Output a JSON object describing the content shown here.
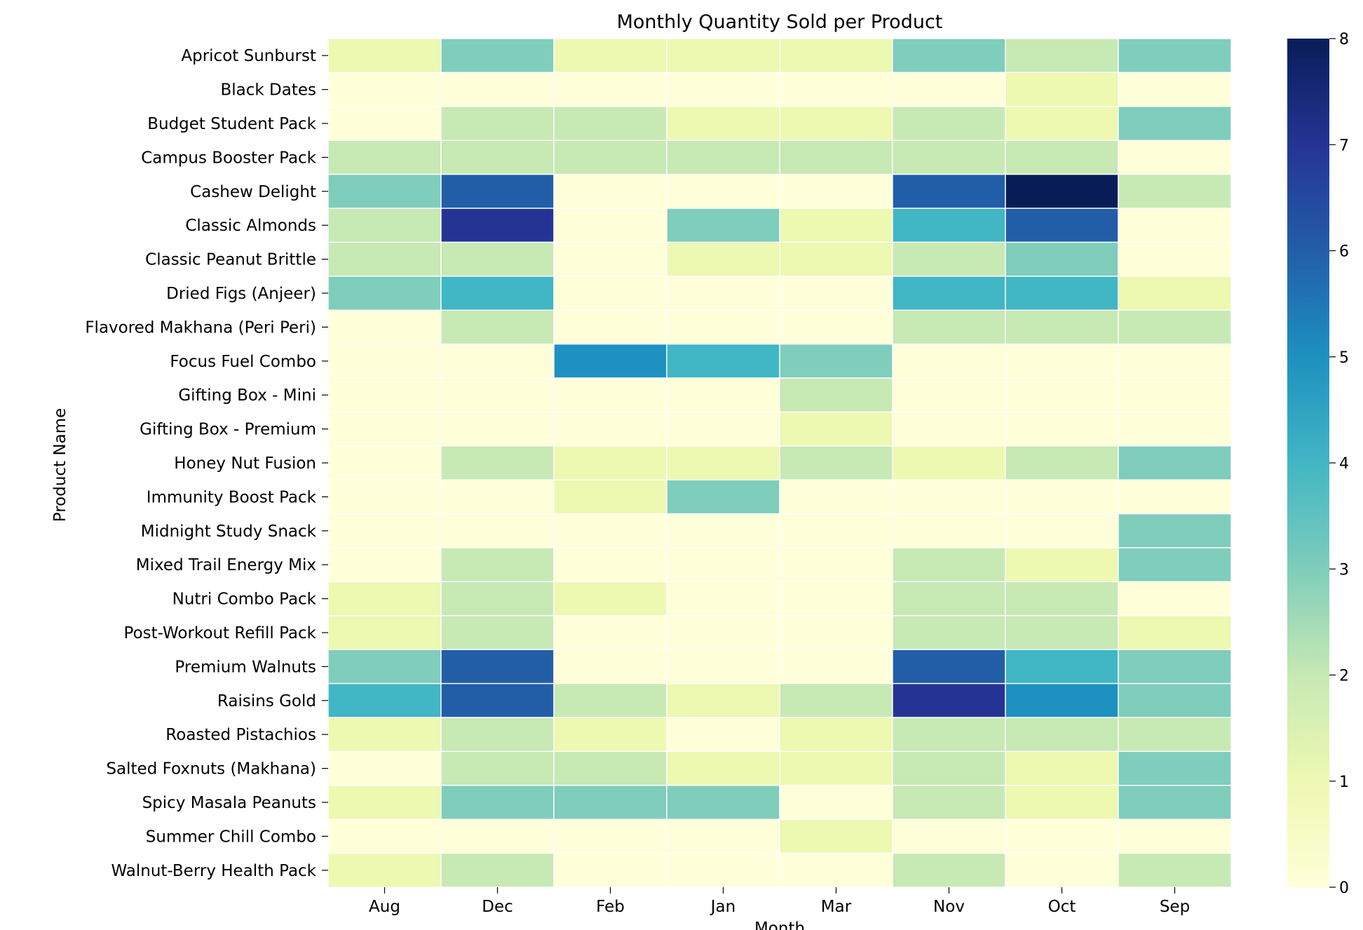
{
  "chart_data": {
    "type": "heatmap",
    "title": "Monthly Quantity Sold per Product",
    "xlabel": "Month",
    "ylabel": "Product Name",
    "x_categories": [
      "Aug",
      "Dec",
      "Feb",
      "Jan",
      "Mar",
      "Nov",
      "Oct",
      "Sep"
    ],
    "y_categories": [
      "Apricot Sunburst",
      "Black Dates",
      "Budget Student Pack",
      "Campus Booster Pack",
      "Cashew Delight",
      "Classic Almonds",
      "Classic Peanut Brittle",
      "Dried Figs (Anjeer)",
      "Flavored Makhana (Peri Peri)",
      "Focus Fuel Combo",
      "Gifting Box - Mini",
      "Gifting Box - Premium",
      "Honey Nut Fusion",
      "Immunity Boost Pack",
      "Midnight Study Snack",
      "Mixed Trail Energy Mix",
      "Nutri Combo Pack",
      "Post-Workout Refill Pack",
      "Premium Walnuts",
      "Raisins Gold",
      "Roasted Pistachios",
      "Salted Foxnuts (Makhana)",
      "Spicy Masala Peanuts",
      "Summer Chill Combo",
      "Walnut-Berry Health Pack"
    ],
    "values": [
      [
        1,
        3,
        1,
        1,
        1,
        3,
        2,
        3
      ],
      [
        0,
        0,
        0,
        0,
        0,
        0,
        1,
        0
      ],
      [
        0,
        2,
        2,
        1,
        1,
        2,
        1,
        3
      ],
      [
        2,
        2,
        2,
        2,
        2,
        2,
        2,
        0
      ],
      [
        3,
        6,
        0,
        0,
        0,
        6,
        8,
        2
      ],
      [
        2,
        7,
        0,
        3,
        1,
        4,
        6,
        0
      ],
      [
        2,
        2,
        0,
        1,
        1,
        2,
        3,
        0
      ],
      [
        3,
        4,
        0,
        0,
        0,
        4,
        4,
        1
      ],
      [
        0,
        2,
        0,
        0,
        0,
        2,
        2,
        2
      ],
      [
        0,
        0,
        5,
        4,
        3,
        0,
        0,
        0
      ],
      [
        0,
        0,
        0,
        0,
        2,
        0,
        0,
        0
      ],
      [
        0,
        0,
        0,
        0,
        1,
        0,
        0,
        0
      ],
      [
        0,
        2,
        1,
        1,
        2,
        1,
        2,
        3
      ],
      [
        0,
        0,
        1,
        3,
        0,
        0,
        0,
        0
      ],
      [
        0,
        0,
        0,
        0,
        0,
        0,
        0,
        3
      ],
      [
        0,
        2,
        0,
        0,
        0,
        2,
        1,
        3
      ],
      [
        1,
        2,
        1,
        0,
        0,
        2,
        2,
        0
      ],
      [
        1,
        2,
        0,
        0,
        0,
        2,
        2,
        1
      ],
      [
        3,
        6,
        0,
        0,
        0,
        6,
        4,
        3
      ],
      [
        4,
        6,
        2,
        1,
        2,
        7,
        5,
        3
      ],
      [
        1,
        2,
        1,
        0,
        1,
        2,
        2,
        2
      ],
      [
        0,
        2,
        2,
        1,
        1,
        2,
        1,
        3
      ],
      [
        1,
        3,
        3,
        3,
        0,
        2,
        1,
        3
      ],
      [
        0,
        0,
        0,
        0,
        1,
        0,
        0,
        0
      ],
      [
        1,
        2,
        0,
        0,
        0,
        2,
        0,
        2
      ]
    ],
    "colorbar": {
      "min": 0,
      "max": 8,
      "ticks": [
        "0",
        "1",
        "2",
        "3",
        "4",
        "5",
        "6",
        "7",
        "8"
      ],
      "colormap": "YlGnBu",
      "stops": [
        "#ffffd9",
        "#edf8b1",
        "#c7e9b4",
        "#7fcdbb",
        "#41b6c4",
        "#1d91c0",
        "#225ea8",
        "#253494",
        "#081d58"
      ]
    }
  }
}
